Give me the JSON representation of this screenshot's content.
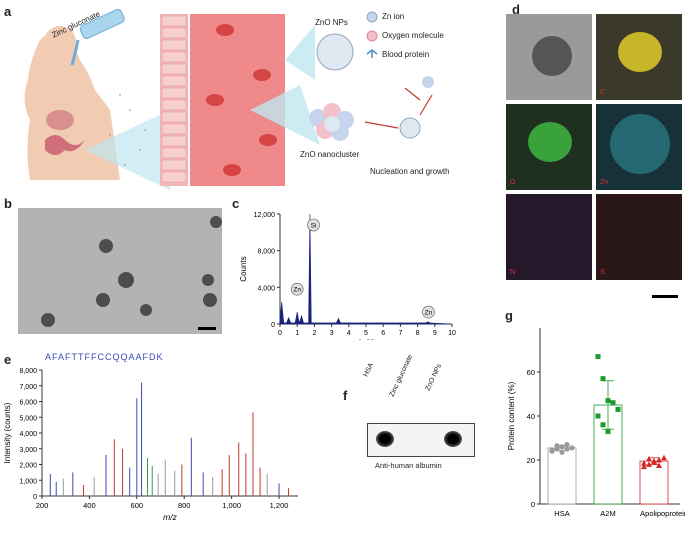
{
  "labels": {
    "a": "a",
    "b": "b",
    "c": "c",
    "d": "d",
    "e": "e",
    "f": "f",
    "g": "g"
  },
  "panel_a": {
    "zinc_gluconate": "Zinc gluconate",
    "zno_nps": "ZnO NPs",
    "legend": [
      "Zn ion",
      "Oxygen molecule",
      "Blood protein"
    ],
    "nanocluster": "ZnO nanocluster",
    "nucleation": "Nucleation and growth"
  },
  "panel_c": {
    "chart_data": {
      "type": "line",
      "xlabel": "keV",
      "ylabel": "Counts",
      "xlim": [
        0,
        10
      ],
      "ylim": [
        0,
        12000
      ],
      "xticks": [
        "0",
        "1",
        "2",
        "3",
        "4",
        "5",
        "6",
        "7",
        "8",
        "9",
        "10"
      ],
      "yticks": [
        "0",
        "4,000",
        "8,000",
        "12,000"
      ],
      "peaks": [
        {
          "x": 0.1,
          "y": 2400
        },
        {
          "x": 0.5,
          "y": 700
        },
        {
          "x": 1.0,
          "y": 1300
        },
        {
          "x": 1.25,
          "y": 900
        },
        {
          "x": 1.74,
          "y": 12000
        },
        {
          "x": 3.4,
          "y": 600
        },
        {
          "x": 8.6,
          "y": 250
        }
      ],
      "annotations": [
        {
          "label": "Zn",
          "x": 1.0,
          "y": 3800
        },
        {
          "label": "Si",
          "x": 1.95,
          "y": 10800
        },
        {
          "label": "Zn",
          "x": 8.63,
          "y": 1300
        }
      ]
    }
  },
  "panel_d": {
    "cells": [
      "",
      "C",
      "O",
      "Zn",
      "N",
      "S"
    ]
  },
  "panel_e": {
    "sequence": "AFAFTTFFCCQQAAFDK",
    "chart_data": {
      "type": "bar",
      "xlabel": "m/z",
      "ylabel": "Intensity (counts)",
      "xlim": [
        200,
        1280
      ],
      "ylim": [
        0,
        8000
      ],
      "xticks": [
        "200",
        "400",
        "600",
        "800",
        "1,000",
        "1,200"
      ],
      "yticks": [
        "0",
        "1,000",
        "2,000",
        "3,000",
        "4,000",
        "5,000",
        "6,000",
        "7,000",
        "8,000"
      ],
      "peaks": [
        {
          "x": 235,
          "y": 1400,
          "c": "#3a4bb5"
        },
        {
          "x": 260,
          "y": 900,
          "c": "#3a4bb5"
        },
        {
          "x": 290,
          "y": 1100,
          "c": "#9a9a9a"
        },
        {
          "x": 330,
          "y": 1500,
          "c": "#3a4bb5"
        },
        {
          "x": 375,
          "y": 700,
          "c": "#c0392b"
        },
        {
          "x": 420,
          "y": 1200,
          "c": "#9a9a9a"
        },
        {
          "x": 470,
          "y": 2600,
          "c": "#3a4bb5"
        },
        {
          "x": 505,
          "y": 3600,
          "c": "#c0392b"
        },
        {
          "x": 540,
          "y": 3000,
          "c": "#c0392b"
        },
        {
          "x": 570,
          "y": 1800,
          "c": "#3a4bb5"
        },
        {
          "x": 600,
          "y": 6200,
          "c": "#3a4bb5"
        },
        {
          "x": 620,
          "y": 7200,
          "c": "#3a4bb5"
        },
        {
          "x": 645,
          "y": 2400,
          "c": "#2e9e3f"
        },
        {
          "x": 665,
          "y": 1900,
          "c": "#2e9e3f"
        },
        {
          "x": 690,
          "y": 1400,
          "c": "#9a9a9a"
        },
        {
          "x": 720,
          "y": 2300,
          "c": "#9a9a9a"
        },
        {
          "x": 760,
          "y": 1600,
          "c": "#9a9a9a"
        },
        {
          "x": 790,
          "y": 2000,
          "c": "#c0392b"
        },
        {
          "x": 830,
          "y": 3700,
          "c": "#3a4bb5"
        },
        {
          "x": 880,
          "y": 1500,
          "c": "#3a4bb5"
        },
        {
          "x": 920,
          "y": 1200,
          "c": "#9a9a9a"
        },
        {
          "x": 960,
          "y": 1700,
          "c": "#c0392b"
        },
        {
          "x": 990,
          "y": 2600,
          "c": "#c0392b"
        },
        {
          "x": 1030,
          "y": 3400,
          "c": "#c0392b"
        },
        {
          "x": 1060,
          "y": 2700,
          "c": "#c0392b"
        },
        {
          "x": 1090,
          "y": 5300,
          "c": "#c0392b"
        },
        {
          "x": 1120,
          "y": 1800,
          "c": "#c0392b"
        },
        {
          "x": 1150,
          "y": 1400,
          "c": "#9a9a9a"
        },
        {
          "x": 1200,
          "y": 800,
          "c": "#3a4bb5"
        },
        {
          "x": 1240,
          "y": 500,
          "c": "#c0392b"
        }
      ]
    }
  },
  "panel_f": {
    "columns": [
      "HSA",
      "Zinc gluconate",
      "ZnO NPs"
    ],
    "caption": "Anti-human albumin"
  },
  "panel_g": {
    "chart_data": {
      "type": "bar",
      "ylabel": "Protein content (%)",
      "ylim": [
        0,
        80
      ],
      "yticks": [
        "0",
        "20",
        "40",
        "60"
      ],
      "categories": [
        "HSA",
        "A2M",
        "Apolipoproteins"
      ],
      "values": [
        25.5,
        45,
        19.5
      ],
      "errors": [
        1.2,
        11,
        1.5
      ],
      "colors": [
        "#9a9a9a",
        "#1f9a2e",
        "#d62728"
      ],
      "points": [
        [
          24,
          25,
          26,
          27,
          25.5,
          24.5,
          26.5,
          23.5,
          25
        ],
        [
          67,
          57,
          47,
          46,
          43,
          40,
          36,
          33,
          46
        ],
        [
          17,
          18,
          19,
          20,
          21,
          18.5,
          20.5,
          19.5,
          17.5
        ]
      ]
    }
  }
}
